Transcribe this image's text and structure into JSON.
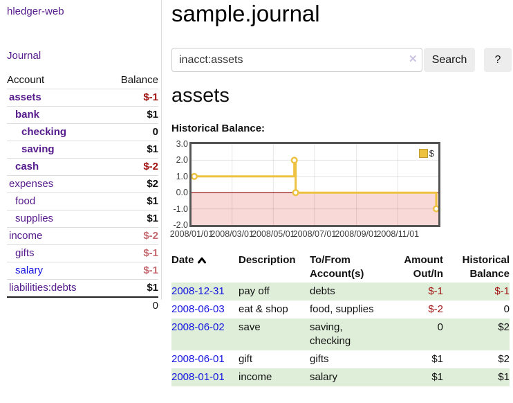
{
  "app": {
    "brand": "hledger-web",
    "nav_journal": "Journal"
  },
  "sidebar": {
    "columns": {
      "account": "Account",
      "balance": "Balance"
    },
    "rows": [
      {
        "account": "assets",
        "balance": "$-1",
        "indent": 1,
        "bold": true,
        "neg": "strong",
        "link": "purple"
      },
      {
        "account": "bank",
        "balance": "$1",
        "indent": 2,
        "bold": true,
        "neg": "none",
        "link": "purple"
      },
      {
        "account": "checking",
        "balance": "0",
        "indent": 3,
        "bold": true,
        "neg": "none",
        "link": "purple"
      },
      {
        "account": "saving",
        "balance": "$1",
        "indent": 3,
        "bold": true,
        "neg": "none",
        "link": "purple"
      },
      {
        "account": "cash",
        "balance": "$-2",
        "indent": 2,
        "bold": true,
        "neg": "strong",
        "link": "purple"
      },
      {
        "account": "expenses",
        "balance": "$2",
        "indent": 1,
        "bold": false,
        "neg": "none",
        "link": "purple"
      },
      {
        "account": "food",
        "balance": "$1",
        "indent": 2,
        "bold": false,
        "neg": "none",
        "link": "purple"
      },
      {
        "account": "supplies",
        "balance": "$1",
        "indent": 2,
        "bold": false,
        "neg": "none",
        "link": "purple"
      },
      {
        "account": "income",
        "balance": "$-2",
        "indent": 1,
        "bold": false,
        "neg": "soft",
        "link": "purple"
      },
      {
        "account": "gifts",
        "balance": "$-1",
        "indent": 2,
        "bold": false,
        "neg": "soft",
        "link": "purple"
      },
      {
        "account": "salary",
        "balance": "$-1",
        "indent": 2,
        "bold": false,
        "neg": "soft",
        "link": "blue"
      },
      {
        "account": "liabilities:debts",
        "balance": "$1",
        "indent": 1,
        "bold": false,
        "neg": "none",
        "link": "purple"
      }
    ],
    "total": "0"
  },
  "header": {
    "title": "sample.journal"
  },
  "search": {
    "value": "inacct:assets",
    "clear_icon": "✕",
    "button_label": "Search",
    "help_label": "?"
  },
  "account_page": {
    "heading": "assets",
    "chart_label": "Historical Balance:"
  },
  "chart_data": {
    "type": "line",
    "style": "step",
    "title": "Historical Balance",
    "x_start": "2008-01-01",
    "x_end": "2008-12-31",
    "ylim": [
      -2.0,
      3.0
    ],
    "yticks": [
      "3.0",
      "2.0",
      "1.0",
      "0.0",
      "-1.0",
      "-2.0"
    ],
    "xticks": [
      "2008/01/01",
      "2008/03/01",
      "2008/05/01",
      "2008/07/01",
      "2008/09/01",
      "2008/11/01"
    ],
    "series": [
      {
        "name": "$",
        "color": "#edc240",
        "points": [
          {
            "x": "2008-01-01",
            "y": 1
          },
          {
            "x": "2008-06-01",
            "y": 2
          },
          {
            "x": "2008-06-03",
            "y": 0
          },
          {
            "x": "2008-12-31",
            "y": -1
          }
        ]
      }
    ],
    "negative_region_color": "#f9d8d8",
    "zero_line_color": "#8b0000",
    "grid": true,
    "legend_position": "top-right"
  },
  "register": {
    "columns": {
      "date": "Date",
      "description": "Description",
      "accounts": "To/From Account(s)",
      "amount": "Amount Out/In",
      "balance": "Historical Balance"
    },
    "sort": "date ascending",
    "rows": [
      {
        "date": "2008-12-31",
        "description": "pay off",
        "accounts": "debts",
        "amount": "$-1",
        "amount_neg": true,
        "balance": "$-1",
        "balance_neg": true
      },
      {
        "date": "2008-06-03",
        "description": "eat & shop",
        "accounts": "food, supplies",
        "amount": "$-2",
        "amount_neg": true,
        "balance": "0",
        "balance_neg": false
      },
      {
        "date": "2008-06-02",
        "description": "save",
        "accounts": "saving, checking",
        "amount": "0",
        "amount_neg": false,
        "balance": "$2",
        "balance_neg": false
      },
      {
        "date": "2008-06-01",
        "description": "gift",
        "accounts": "gifts",
        "amount": "$1",
        "amount_neg": false,
        "balance": "$2",
        "balance_neg": false
      },
      {
        "date": "2008-01-01",
        "description": "income",
        "accounts": "salary",
        "amount": "$1",
        "amount_neg": false,
        "balance": "$1",
        "balance_neg": false
      }
    ]
  }
}
